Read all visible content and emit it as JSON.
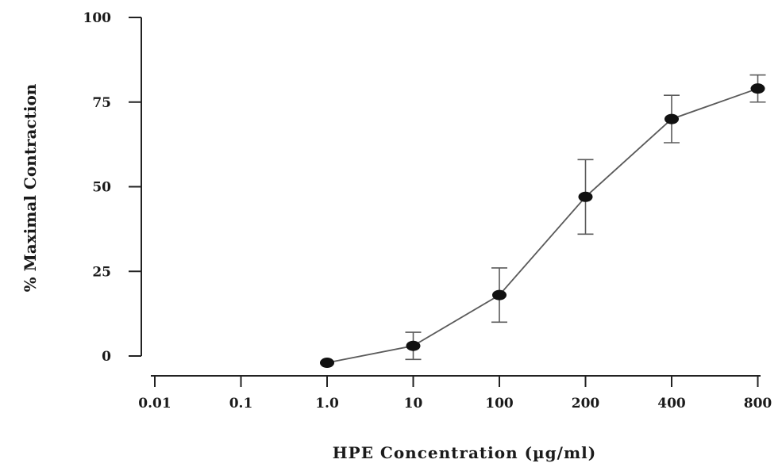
{
  "chart_data": {
    "type": "line",
    "title": "",
    "xlabel": "HPE  Concentration  (µg/ml)",
    "ylabel": "%  Maximal Contraction",
    "x_scale": "categorical",
    "categories": [
      "0.01",
      "0.1",
      "1.0",
      "10",
      "100",
      "200",
      "400",
      "800"
    ],
    "ylim": [
      0,
      100
    ],
    "y_ticks": [
      "0",
      "25",
      "50",
      "75",
      "100"
    ],
    "grid": false,
    "legend": "none",
    "series": [
      {
        "x": [
          "1.0",
          "10",
          "100",
          "200",
          "400",
          "800"
        ],
        "values": [
          -2,
          3,
          18,
          47,
          70,
          79
        ],
        "error": [
          0,
          4,
          8,
          11,
          7,
          4
        ]
      }
    ],
    "colors": {
      "line": "#5a5a5a",
      "marker": "#111111",
      "axis": "#222222"
    }
  }
}
